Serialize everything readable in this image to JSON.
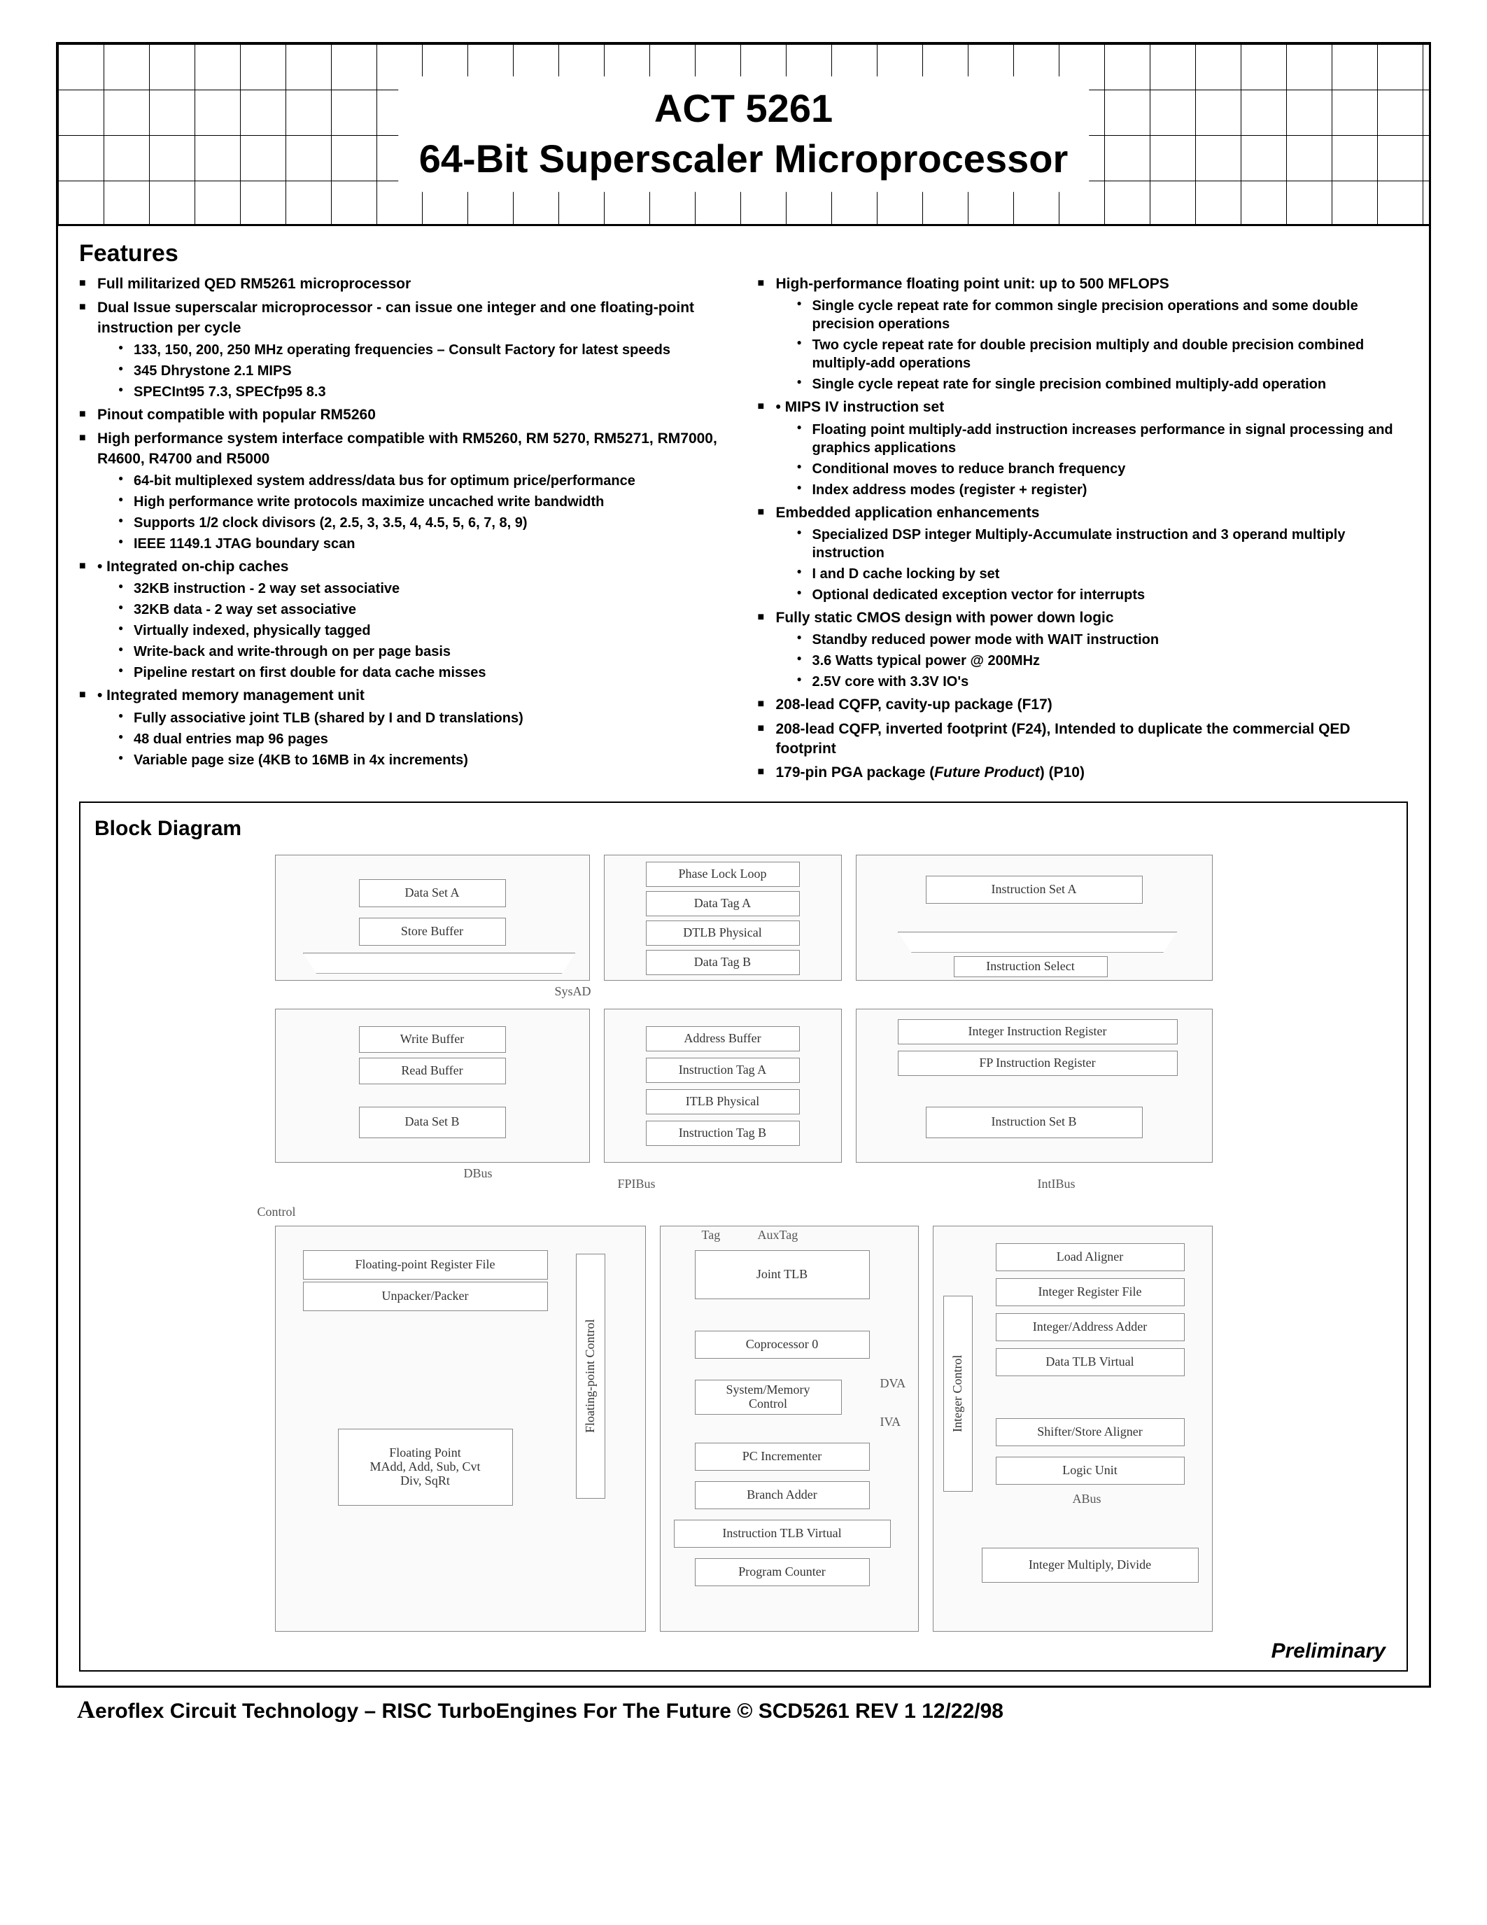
{
  "title": {
    "line1": "ACT 5261",
    "line2": "64-Bit Superscaler Microprocessor"
  },
  "features": {
    "heading": "Features",
    "left": [
      {
        "text": "Full militarized  QED RM5261 microprocessor"
      },
      {
        "text": "Dual Issue superscalar microprocessor - can issue one integer and one floating-point instruction per cycle",
        "sub": [
          "133, 150, 200, 250 MHz operating frequencies –  Consult Factory for latest speeds",
          "345 Dhrystone 2.1 MIPS",
          "SPECInt95 7.3, SPECfp95 8.3"
        ]
      },
      {
        "text": "Pinout compatible with popular RM5260"
      },
      {
        "text": "High performance system interface compatible with RM5260, RM 5270, RM5271, RM7000, R4600, R4700 and R5000",
        "sub": [
          "64-bit multiplexed system address/data bus for optimum price/performance",
          "High performance write protocols maximize uncached write bandwidth",
          "Supports 1/2 clock divisors (2, 2.5, 3, 3.5, 4, 4.5, 5, 6, 7, 8, 9)",
          "IEEE 1149.1 JTAG boundary scan"
        ]
      },
      {
        "text": "• Integrated on-chip caches",
        "sub": [
          "32KB instruction - 2 way set associative",
          "32KB data - 2 way set associative",
          "Virtually indexed, physically tagged",
          "Write-back and write-through on per page basis",
          "Pipeline restart on first double for data cache misses"
        ]
      },
      {
        "text": "• Integrated memory management unit",
        "sub": [
          "Fully associative joint TLB (shared by I and D translations)",
          "48 dual entries map 96 pages",
          "Variable page size (4KB to 16MB in 4x increments)"
        ]
      }
    ],
    "right": [
      {
        "text": "High-performance floating point unit: up to 500 MFLOPS",
        "sub": [
          "Single cycle repeat rate for common single precision operations and some double precision operations",
          "Two cycle repeat rate for double precision multiply and double precision combined multiply-add operations",
          "Single cycle repeat rate for single precision combined multiply-add operation"
        ]
      },
      {
        "text": "• MIPS IV instruction set",
        "sub": [
          "Floating point multiply-add instruction increases performance in signal processing and graphics applications",
          "Conditional moves to reduce branch frequency",
          "Index address modes (register + register)"
        ]
      },
      {
        "text": "Embedded application enhancements",
        "sub": [
          "Specialized DSP integer Multiply-Accumulate instruction and 3 operand multiply instruction",
          "I and D cache locking by set",
          "Optional dedicated exception vector for interrupts"
        ]
      },
      {
        "text": "Fully static CMOS design with power down logic",
        "sub": [
          "Standby reduced power mode with WAIT instruction",
          "3.6 Watts typical power @ 200MHz",
          "2.5V core with 3.3V IO's"
        ]
      },
      {
        "text": "208-lead CQFP, cavity-up package (F17)"
      },
      {
        "text": "208-lead CQFP, inverted footprint (F24), Intended to duplicate the commercial QED footprint"
      },
      {
        "text_html": "179-pin PGA package (<i>Future Product</i>) (P10)"
      }
    ]
  },
  "block": {
    "heading": "Block Diagram",
    "preliminary": "Preliminary",
    "boxes": {
      "dataSetA": "Data Set A",
      "storeBuffer": "Store Buffer",
      "phaseLockLoop": "Phase Lock Loop",
      "dataTagA": "Data Tag A",
      "dtlbPhysical": "DTLB Physical",
      "dataTagB": "Data Tag B",
      "instructionSetA": "Instruction Set A",
      "instructionSelect": "Instruction Select",
      "writeBuffer": "Write Buffer",
      "readBuffer": "Read Buffer",
      "dataSetB": "Data Set B",
      "addressBuffer": "Address Buffer",
      "instructionTagA": "Instruction Tag A",
      "itlbPhysical": "ITLB Physical",
      "instructionTagB": "Instruction Tag B",
      "integerInstrReg": "Integer Instruction Register",
      "fpInstrReg": "FP Instruction Register",
      "instructionSetB": "Instruction Set B",
      "fpRegFile": "Floating-point Register File",
      "unpackerPacker": "Unpacker/Packer",
      "floatingPoint": "Floating Point\nMAdd, Add, Sub, Cvt\nDiv, SqRt",
      "fpControl": "Floating-point Control",
      "jointTLB": "Joint TLB",
      "coprocessor0": "Coprocessor 0",
      "sysMemCtrl": "System/Memory\nControl",
      "pcIncrementer": "PC Incrementer",
      "branchAdder": "Branch Adder",
      "instrTLBVirtual": "Instruction TLB Virtual",
      "programCounter": "Program Counter",
      "integerControl": "Integer Control",
      "loadAligner": "Load Aligner",
      "integerRegFile": "Integer Register File",
      "integerAddrAdder": "Integer/Address Adder",
      "dataTLBVirtual": "Data TLB Virtual",
      "shifterStoreAligner": "Shifter/Store Aligner",
      "logicUnit": "Logic Unit",
      "integerMultDiv": "Integer Multiply, Divide"
    },
    "labels": {
      "sysAD": "SysAD",
      "dbus": "DBus",
      "fpibus": "FPIBus",
      "intibus": "IntIBus",
      "control": "Control",
      "tag": "Tag",
      "auxTag": "AuxTag",
      "dva": "DVA",
      "iva": "IVA",
      "abus": "ABus"
    }
  },
  "footer": "eroflex Circuit Technology  – RISC TurboEngines For The Future © SCD5261 REV 1  12/22/98"
}
